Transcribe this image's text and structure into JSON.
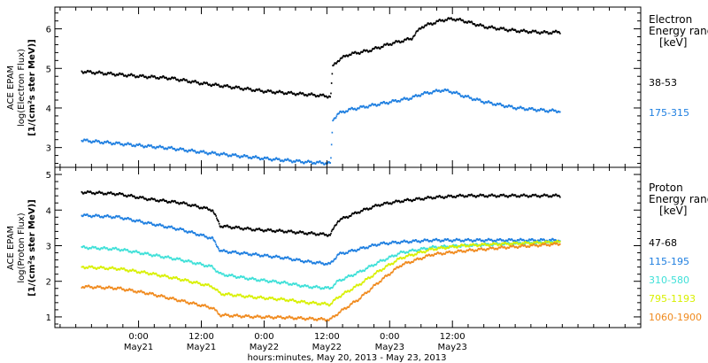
{
  "chart_data": [
    {
      "type": "scatter",
      "panel": "electron",
      "ylabel_lines": [
        "ACE EPAM",
        "log(Electron Flux)",
        "[1/(cm²s ster MeV)]"
      ],
      "ylim": [
        2.5,
        6.55
      ],
      "yticks": [
        3,
        4,
        5,
        6
      ],
      "legend_title_lines": [
        "Electron",
        "Energy ranges",
        "[keV]"
      ],
      "series": [
        {
          "name": "38-53",
          "color": "#000000",
          "x": [
            -11,
            0,
            6,
            12,
            18,
            24,
            32,
            36.6,
            37,
            38,
            40,
            44,
            48,
            52,
            54,
            58,
            60,
            62,
            66,
            72,
            78,
            80.5
          ],
          "y": [
            4.92,
            4.8,
            4.75,
            4.62,
            4.52,
            4.42,
            4.34,
            4.29,
            5.05,
            5.2,
            5.35,
            5.45,
            5.62,
            5.75,
            6.05,
            6.22,
            6.25,
            6.2,
            6.05,
            5.95,
            5.9,
            5.92
          ]
        },
        {
          "name": "175-315",
          "color": "#1f7fe0",
          "x": [
            -11,
            0,
            6,
            12,
            18,
            24,
            32,
            36.6,
            37,
            38,
            40,
            44,
            48,
            52,
            54,
            58,
            60,
            62,
            66,
            72,
            78,
            80.5
          ],
          "y": [
            3.18,
            3.05,
            2.98,
            2.88,
            2.8,
            2.72,
            2.63,
            2.6,
            3.7,
            3.85,
            3.95,
            4.05,
            4.15,
            4.25,
            4.35,
            4.45,
            4.4,
            4.3,
            4.15,
            4.0,
            3.93,
            3.92
          ]
        }
      ]
    },
    {
      "type": "scatter",
      "panel": "proton",
      "ylabel_lines": [
        "ACE EPAM",
        "log(Proton Flux)",
        "[1/(cm²s ster MeV)]"
      ],
      "ylim": [
        0.7,
        5.2
      ],
      "yticks": [
        1,
        2,
        3,
        4,
        5
      ],
      "legend_title_lines": [
        "Proton",
        "Energy ranges",
        "[keV]"
      ],
      "series": [
        {
          "name": "47-68",
          "color": "#000000",
          "x": [
            -11,
            -4,
            2,
            8,
            14,
            15.5,
            22,
            28,
            32,
            36.5,
            38,
            42,
            46,
            50,
            56,
            62,
            70,
            80.5
          ],
          "y": [
            4.5,
            4.45,
            4.3,
            4.2,
            4.0,
            3.55,
            3.45,
            3.4,
            3.35,
            3.3,
            3.7,
            3.95,
            4.15,
            4.25,
            4.35,
            4.4,
            4.4,
            4.4
          ]
        },
        {
          "name": "115-195",
          "color": "#1f7fe0",
          "x": [
            -11,
            -4,
            2,
            8,
            14,
            15.5,
            22,
            28,
            32,
            36.5,
            38,
            42,
            46,
            50,
            56,
            62,
            70,
            80.5
          ],
          "y": [
            3.85,
            3.8,
            3.62,
            3.45,
            3.2,
            2.85,
            2.75,
            2.65,
            2.55,
            2.48,
            2.75,
            2.9,
            3.05,
            3.1,
            3.15,
            3.15,
            3.15,
            3.15
          ]
        },
        {
          "name": "310-580",
          "color": "#3fe0d8",
          "x": [
            -11,
            -4,
            2,
            8,
            14,
            15.5,
            22,
            28,
            32,
            36.5,
            38,
            42,
            46,
            50,
            56,
            62,
            70,
            80.5
          ],
          "y": [
            2.95,
            2.9,
            2.75,
            2.6,
            2.4,
            2.2,
            2.05,
            1.95,
            1.85,
            1.8,
            2.0,
            2.25,
            2.55,
            2.8,
            2.95,
            3.0,
            3.05,
            3.1
          ]
        },
        {
          "name": "795-1193",
          "color": "#d8f000",
          "x": [
            -11,
            -4,
            2,
            8,
            14,
            15.5,
            22,
            28,
            32,
            36.5,
            38,
            42,
            46,
            50,
            56,
            62,
            70,
            80.5
          ],
          "y": [
            2.4,
            2.35,
            2.22,
            2.05,
            1.85,
            1.65,
            1.55,
            1.48,
            1.4,
            1.35,
            1.55,
            1.9,
            2.3,
            2.65,
            2.9,
            3.0,
            3.05,
            3.1
          ]
        },
        {
          "name": "1060-1900",
          "color": "#f08a1e",
          "x": [
            -11,
            -4,
            2,
            8,
            14,
            15.5,
            22,
            28,
            32,
            36.5,
            38,
            42,
            46,
            50,
            56,
            62,
            70,
            80.5
          ],
          "y": [
            1.85,
            1.8,
            1.65,
            1.45,
            1.25,
            1.05,
            1.0,
            0.98,
            0.95,
            0.92,
            1.1,
            1.5,
            2.0,
            2.45,
            2.75,
            2.85,
            2.95,
            3.05
          ]
        }
      ]
    }
  ],
  "x_axis": {
    "xlim": [
      -16,
      96
    ],
    "major_ticks": [
      0,
      12,
      24,
      36,
      48,
      60
    ],
    "tick_labels": [
      {
        "time": "0:00",
        "date": "May21"
      },
      {
        "time": "12:00",
        "date": "May21"
      },
      {
        "time": "0:00",
        "date": "May22"
      },
      {
        "time": "12:00",
        "date": "May22"
      },
      {
        "time": "0:00",
        "date": "May23"
      },
      {
        "time": "12:00",
        "date": "May23"
      }
    ],
    "xlabel": "hours:minutes, May 20, 2013 - May 23, 2013"
  }
}
